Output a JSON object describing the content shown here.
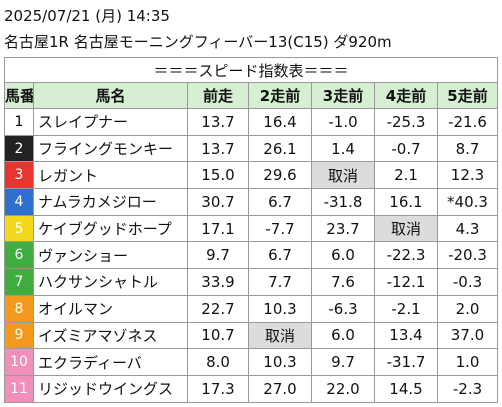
{
  "header": {
    "datetime": "2025/07/21 (月) 14:35",
    "race": "名古屋1R 名古屋モーニングフィーバー13(C15) ダ920m"
  },
  "table": {
    "title": "＝＝＝スピード指数表＝＝＝",
    "columns": [
      "馬番",
      "馬名",
      "前走",
      "2走前",
      "3走前",
      "4走前",
      "5走前"
    ],
    "header_color": "#d6efd3",
    "shade_color": "#dcdcdc",
    "rows": [
      {
        "no": "1",
        "name": "スレイプナー",
        "cells": [
          "13.7",
          "16.4",
          "-1.0",
          "-25.3",
          "-21.6"
        ],
        "bg": "#ffffff",
        "fg": "#000000",
        "shaded": []
      },
      {
        "no": "2",
        "name": "フライングモンキー",
        "cells": [
          "13.7",
          "26.1",
          "1.4",
          "-0.7",
          "8.7"
        ],
        "bg": "#222222",
        "fg": "#ffffff",
        "shaded": []
      },
      {
        "no": "3",
        "name": "レガント",
        "cells": [
          "15.0",
          "29.6",
          "取消",
          "2.1",
          "12.3"
        ],
        "bg": "#e8352f",
        "fg": "#ffffff",
        "shaded": [
          2
        ]
      },
      {
        "no": "4",
        "name": "ナムラカメジロー",
        "cells": [
          "30.7",
          "6.7",
          "-31.8",
          "16.1",
          "*40.3"
        ],
        "bg": "#2f6fd0",
        "fg": "#ffffff",
        "shaded": []
      },
      {
        "no": "5",
        "name": "ケイブグッドホープ",
        "cells": [
          "17.1",
          "-7.7",
          "23.7",
          "取消",
          "4.3"
        ],
        "bg": "#f3d81e",
        "fg": "#ffffff",
        "shaded": [
          3
        ]
      },
      {
        "no": "6",
        "name": "ヴァンショー",
        "cells": [
          "9.7",
          "6.7",
          "6.0",
          "-22.3",
          "-20.3"
        ],
        "bg": "#3fae3f",
        "fg": "#ffffff",
        "shaded": []
      },
      {
        "no": "7",
        "name": "ハクサンシャトル",
        "cells": [
          "33.9",
          "7.7",
          "7.6",
          "-12.1",
          "-0.3"
        ],
        "bg": "#3fae3f",
        "fg": "#ffffff",
        "shaded": []
      },
      {
        "no": "8",
        "name": "オイルマン",
        "cells": [
          "22.7",
          "10.3",
          "-6.3",
          "-2.1",
          "2.0"
        ],
        "bg": "#f39a1e",
        "fg": "#ffffff",
        "shaded": []
      },
      {
        "no": "9",
        "name": "イズミアマゾネス",
        "cells": [
          "10.7",
          "取消",
          "6.0",
          "13.4",
          "37.0"
        ],
        "bg": "#f39a1e",
        "fg": "#ffffff",
        "shaded": [
          1
        ]
      },
      {
        "no": "10",
        "name": "エクラディーバ",
        "cells": [
          "8.0",
          "10.3",
          "9.7",
          "-31.7",
          "1.0"
        ],
        "bg": "#f08fb8",
        "fg": "#ffffff",
        "shaded": []
      },
      {
        "no": "11",
        "name": "リジッドウイングス",
        "cells": [
          "17.3",
          "27.0",
          "22.0",
          "14.5",
          "-2.3"
        ],
        "bg": "#f08fb8",
        "fg": "#ffffff",
        "shaded": []
      }
    ]
  }
}
